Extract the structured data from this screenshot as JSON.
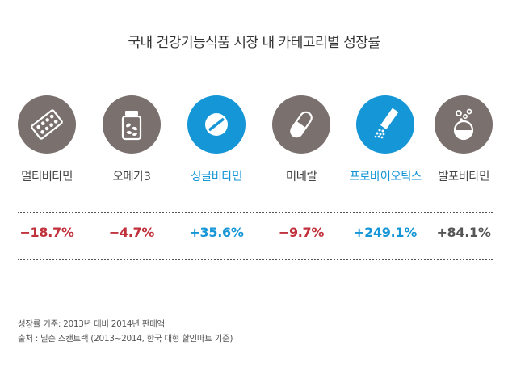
{
  "title": "국내 건강기능식품 시장 내 카테고리별 성장률",
  "colors": {
    "gray": "#7a716e",
    "blue": "#1596d6",
    "red": "#c0313c",
    "dark": "#555555"
  },
  "categories": [
    {
      "label": "멀티비타민",
      "icon": "pill-blister-pack-icon",
      "growth": "−18.7%",
      "highlight": false,
      "growth_color": "red"
    },
    {
      "label": "오메가3",
      "icon": "supplement-bottle-icon",
      "growth": "−4.7%",
      "highlight": false,
      "growth_color": "red"
    },
    {
      "label": "싱글비타민",
      "icon": "tablet-icon",
      "growth": "+35.6%",
      "highlight": true,
      "growth_color": "blue"
    },
    {
      "label": "미네랄",
      "icon": "capsule-icon",
      "growth": "−9.7%",
      "highlight": false,
      "growth_color": "red"
    },
    {
      "label": "프로바이오틱스",
      "icon": "probiotic-powder-stick-icon",
      "growth": "+249.1%",
      "highlight": true,
      "growth_color": "blue"
    },
    {
      "label": "발포비타민",
      "icon": "effervescent-tablet-icon",
      "growth": "+84.1%",
      "highlight": false,
      "growth_color": "dark"
    }
  ],
  "notes": {
    "basis": "성장률 기준: 2013년 대비 2014년 판매액",
    "source": "출처 : 닐슨 스캔트랙 (2013~2014, 한국 대형 할인마트 기준)"
  }
}
